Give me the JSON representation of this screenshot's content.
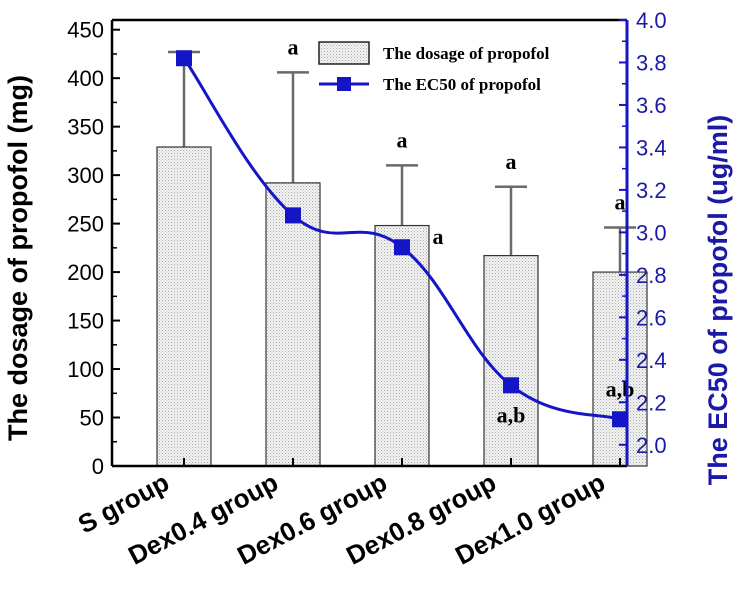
{
  "chart_data": {
    "type": "bar",
    "categories": [
      "S group",
      "Dex0.4 group",
      "Dex0.6 group",
      "Dex0.8 group",
      "Dex1.0 group"
    ],
    "series": [
      {
        "name": "The dosage of propofol",
        "type": "bar",
        "axis": "left",
        "values": [
          329,
          292,
          248,
          217,
          200
        ],
        "error_upper": [
          98,
          114,
          62,
          71,
          46
        ],
        "color": "#e8e8e8"
      },
      {
        "name": "The EC50 of propofol",
        "type": "line",
        "axis": "right",
        "values": [
          3.82,
          3.08,
          2.93,
          2.28,
          2.12
        ],
        "color": "#1515c8"
      }
    ],
    "annotations": {
      "bar_labels": [
        "",
        "a",
        "a",
        "a",
        "a"
      ],
      "point_labels": [
        "",
        "",
        "a",
        "a,b",
        "a,b"
      ]
    },
    "ylabel_left": "The dosage of propofol (mg)",
    "ylabel_right": "The EC50 of propofol (ug/ml)",
    "ylim_left": [
      0,
      460
    ],
    "ylim_right": [
      1.9,
      4.0
    ],
    "yticks_left": [
      "0",
      "50",
      "100",
      "150",
      "200",
      "250",
      "300",
      "350",
      "400",
      "450"
    ],
    "yticks_right": [
      "2.0",
      "2.2",
      "2.4",
      "2.6",
      "2.8",
      "3.0",
      "3.2",
      "3.4",
      "3.6",
      "3.8",
      "4.0"
    ],
    "legend": {
      "position": "top-right",
      "entries": [
        "The dosage of propofol",
        "The EC50 of propofol"
      ]
    },
    "grid": false
  }
}
